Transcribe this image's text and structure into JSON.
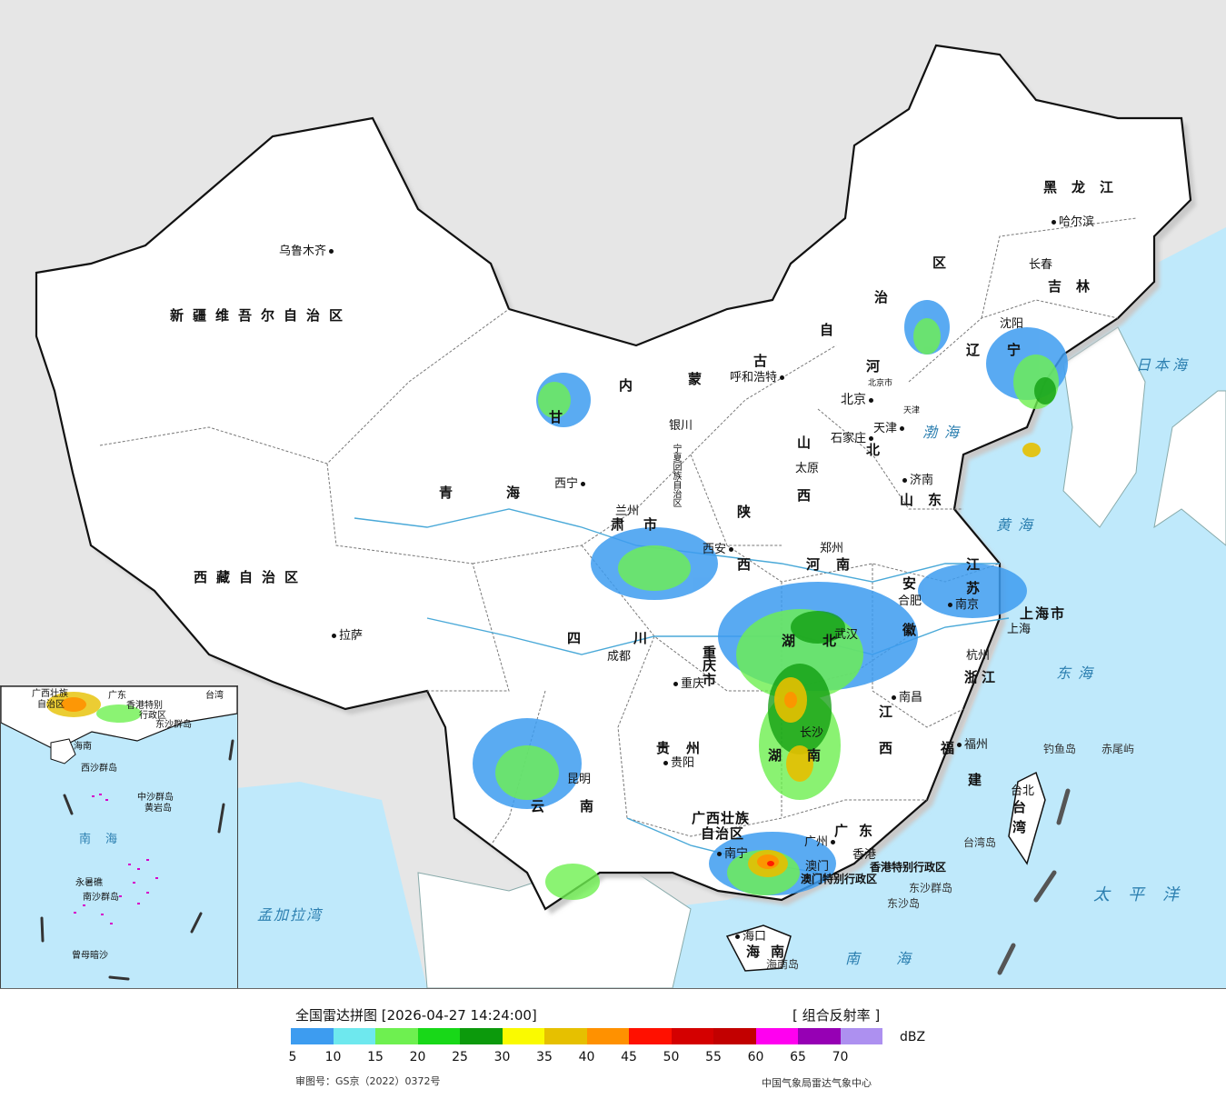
{
  "title": "全国雷达拼图 [2026-04-27 14:24:00]",
  "product": "[ 组合反射率 ]",
  "legend": {
    "unit": "dBZ",
    "colors": [
      "#3d9cf0",
      "#6ee8ee",
      "#6ef050",
      "#18d818",
      "#0c9a0c",
      "#fafa00",
      "#e6c000",
      "#ff9100",
      "#ff1000",
      "#d40000",
      "#c20000",
      "#ff00f0",
      "#9600b4",
      "#ad90f0"
    ],
    "ticks": [
      "5",
      "10",
      "15",
      "20",
      "25",
      "30",
      "35",
      "40",
      "45",
      "50",
      "55",
      "60",
      "65",
      "70"
    ]
  },
  "approval": "审图号：GS京（2022）0372号",
  "agency": "中国气象局雷达气象中心",
  "provinces": [
    {
      "key": "xinjiang",
      "text": "新疆维吾尔自治区"
    },
    {
      "key": "xizang",
      "text": "西藏自治区"
    },
    {
      "key": "qinghai1",
      "text": "青"
    },
    {
      "key": "qinghai2",
      "text": "海"
    },
    {
      "key": "gansu1",
      "text": "甘"
    },
    {
      "key": "gansu2",
      "text": "肃"
    },
    {
      "key": "nmg1",
      "text": "内"
    },
    {
      "key": "nmg2",
      "text": "蒙"
    },
    {
      "key": "nmg3",
      "text": "古"
    },
    {
      "key": "nmg4",
      "text": "自"
    },
    {
      "key": "nmg5",
      "text": "治"
    },
    {
      "key": "nmg6",
      "text": "区"
    },
    {
      "key": "ningxia",
      "text": "宁夏回族自治区"
    },
    {
      "key": "shaanxi1",
      "text": "陕"
    },
    {
      "key": "shaanxi2",
      "text": "西"
    },
    {
      "key": "shanxi1",
      "text": "山"
    },
    {
      "key": "shanxi2",
      "text": "西"
    },
    {
      "key": "hebei1",
      "text": "河"
    },
    {
      "key": "hebei2",
      "text": "北"
    },
    {
      "key": "heilongjiang",
      "text": "黑龙江"
    },
    {
      "key": "jilin",
      "text": "吉林"
    },
    {
      "key": "liaoning1",
      "text": "辽"
    },
    {
      "key": "liaoning2",
      "text": "宁"
    },
    {
      "key": "shandong",
      "text": "山东"
    },
    {
      "key": "henan",
      "text": "河南"
    },
    {
      "key": "jiangsu1",
      "text": "江"
    },
    {
      "key": "jiangsu2",
      "text": "苏"
    },
    {
      "key": "anhui1",
      "text": "安"
    },
    {
      "key": "anhui2",
      "text": "徽"
    },
    {
      "key": "shanghai",
      "text": "上海市"
    },
    {
      "key": "zhejiang",
      "text": "浙江"
    },
    {
      "key": "hubei1",
      "text": "湖"
    },
    {
      "key": "hubei2",
      "text": "北"
    },
    {
      "key": "hunan1",
      "text": "湖"
    },
    {
      "key": "hunan2",
      "text": "南"
    },
    {
      "key": "jiangxi1",
      "text": "江"
    },
    {
      "key": "jiangxi2",
      "text": "西"
    },
    {
      "key": "fujian1",
      "text": "福"
    },
    {
      "key": "fujian2",
      "text": "建"
    },
    {
      "key": "sichuan1",
      "text": "四"
    },
    {
      "key": "sichuan2",
      "text": "川"
    },
    {
      "key": "chongqing1",
      "text": "重"
    },
    {
      "key": "chongqing2",
      "text": "庆"
    },
    {
      "key": "chongqing3",
      "text": "市"
    },
    {
      "key": "guizhou",
      "text": "贵州"
    },
    {
      "key": "yunnan1",
      "text": "云"
    },
    {
      "key": "yunnan2",
      "text": "南"
    },
    {
      "key": "guangxi1",
      "text": "广西壮族"
    },
    {
      "key": "guangxi2",
      "text": "自治区"
    },
    {
      "key": "guangdong",
      "text": "广东"
    },
    {
      "key": "hainan",
      "text": "海南"
    },
    {
      "key": "taiwan1",
      "text": "台"
    },
    {
      "key": "taiwan2",
      "text": "湾"
    },
    {
      "key": "hk",
      "text": "香港特别行政区"
    },
    {
      "key": "macau",
      "text": "澳门特别行政区"
    },
    {
      "key": "beijing",
      "text": "北京市"
    },
    {
      "key": "tianjin",
      "text": "天津"
    },
    {
      "key": "ningxia2",
      "text": "市"
    }
  ],
  "cities": [
    {
      "key": "urumqi",
      "text": "乌鲁木齐"
    },
    {
      "key": "lhasa",
      "text": "拉萨"
    },
    {
      "key": "xining",
      "text": "西宁"
    },
    {
      "key": "lanzhou",
      "text": "兰州"
    },
    {
      "key": "yinchuan",
      "text": "银川"
    },
    {
      "key": "hohhot",
      "text": "呼和浩特"
    },
    {
      "key": "beijing",
      "text": "北京"
    },
    {
      "key": "tianjin",
      "text": "天津"
    },
    {
      "key": "shijiazhuang",
      "text": "石家庄"
    },
    {
      "key": "taiyuan",
      "text": "太原"
    },
    {
      "key": "jinan",
      "text": "济南"
    },
    {
      "key": "zhengzhou",
      "text": "郑州"
    },
    {
      "key": "xian",
      "text": "西安"
    },
    {
      "key": "chengdu",
      "text": "成都"
    },
    {
      "key": "chongqing",
      "text": "重庆"
    },
    {
      "key": "wuhan",
      "text": "武汉"
    },
    {
      "key": "hefei",
      "text": "合肥"
    },
    {
      "key": "nanjing",
      "text": "南京"
    },
    {
      "key": "shanghai",
      "text": "上海"
    },
    {
      "key": "hangzhou",
      "text": "杭州"
    },
    {
      "key": "nanchang",
      "text": "南昌"
    },
    {
      "key": "changsha",
      "text": "长沙"
    },
    {
      "key": "fuzhou",
      "text": "福州"
    },
    {
      "key": "guiyang",
      "text": "贵阳"
    },
    {
      "key": "kunming",
      "text": "昆明"
    },
    {
      "key": "nanning",
      "text": "南宁"
    },
    {
      "key": "guangzhou",
      "text": "广州"
    },
    {
      "key": "hongkong",
      "text": "香港"
    },
    {
      "key": "macau",
      "text": "澳门"
    },
    {
      "key": "haikou",
      "text": "海口"
    },
    {
      "key": "taibei",
      "text": "台北"
    },
    {
      "key": "shenyang",
      "text": "沈阳"
    },
    {
      "key": "changchun",
      "text": "长春"
    },
    {
      "key": "harbin",
      "text": "哈尔滨"
    }
  ],
  "seas": [
    {
      "key": "bohai",
      "text": "渤海"
    },
    {
      "key": "huanghai",
      "text": "黄海"
    },
    {
      "key": "donghai",
      "text": "东海"
    },
    {
      "key": "nanhai",
      "text": "南海"
    },
    {
      "key": "riben",
      "text": "日本海"
    },
    {
      "key": "taipingyang",
      "text": "太平洋"
    },
    {
      "key": "mengjiala",
      "text": "孟加拉湾"
    }
  ],
  "islands": [
    {
      "key": "diaoyu",
      "text": "钓鱼岛"
    },
    {
      "key": "chiwei",
      "text": "赤尾屿"
    },
    {
      "key": "dongsha1",
      "text": "东沙群岛"
    },
    {
      "key": "dongsha2",
      "text": "东沙岛"
    },
    {
      "key": "hainandao",
      "text": "海南岛"
    },
    {
      "key": "taiwandao",
      "text": "台湾岛"
    }
  ],
  "inset": {
    "labels": [
      {
        "key": "i1",
        "text": "广西壮族"
      },
      {
        "key": "i2",
        "text": "自治区"
      },
      {
        "key": "i3",
        "text": "广东"
      },
      {
        "key": "i4",
        "text": "香港特别"
      },
      {
        "key": "i5",
        "text": "行政区"
      },
      {
        "key": "i6",
        "text": "台湾"
      },
      {
        "key": "i7",
        "text": "东沙群岛"
      },
      {
        "key": "i8",
        "text": "海南"
      },
      {
        "key": "i9",
        "text": "西沙群岛"
      },
      {
        "key": "i10",
        "text": "中沙群岛"
      },
      {
        "key": "i11",
        "text": "黄岩岛"
      },
      {
        "key": "i12",
        "text": "南海"
      },
      {
        "key": "i13",
        "text": "南沙群岛"
      },
      {
        "key": "i14",
        "text": "永暑礁"
      },
      {
        "key": "i15",
        "text": "曾母暗沙"
      }
    ]
  }
}
